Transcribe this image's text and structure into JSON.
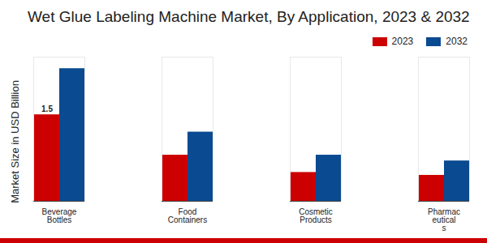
{
  "chart_data": {
    "type": "bar",
    "title": "Wet Glue Labeling Machine Market, By Application, 2023 & 2032",
    "y_label": "Market Size in USD Billion",
    "categories": [
      "Beverage\nBottles",
      "Food\nContainers",
      "Cosmetic\nProducts",
      "Pharmac\neutical\ns"
    ],
    "series": [
      {
        "name": "2023",
        "color": "#cc0000",
        "values": [
          1.5,
          0.8,
          0.5,
          0.45
        ]
      },
      {
        "name": "2032",
        "color": "#0a4a90",
        "values": [
          2.3,
          1.2,
          0.8,
          0.7
        ]
      }
    ],
    "annotations": [
      {
        "text": "1.5",
        "category": "Beverage\nBottles",
        "series": "2023"
      }
    ],
    "ylim": [
      0,
      2.5
    ],
    "yticks": [],
    "tick_labels": "x",
    "grid": false,
    "legend": "top-right"
  }
}
